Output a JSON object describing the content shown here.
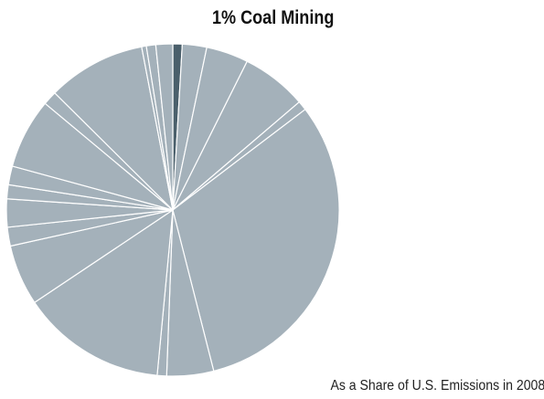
{
  "chart_data": {
    "type": "pie",
    "title": "1% Coal Mining",
    "subtitle": "As a Share of U.S. Emissions in 2008",
    "highlight_index": 0,
    "colors": {
      "highlight": "#4a5f6b",
      "base": "#a4b1ba",
      "divider": "#ffffff"
    },
    "slice_values": [
      1.0,
      2.6,
      4.5,
      7.0,
      1.0,
      34.5,
      5.0,
      1.0,
      15.5,
      6.5,
      2.0,
      3.0,
      1.5,
      2.0,
      7.5,
      1.5,
      10.5,
      0.5,
      1.0,
      1.8
    ]
  }
}
